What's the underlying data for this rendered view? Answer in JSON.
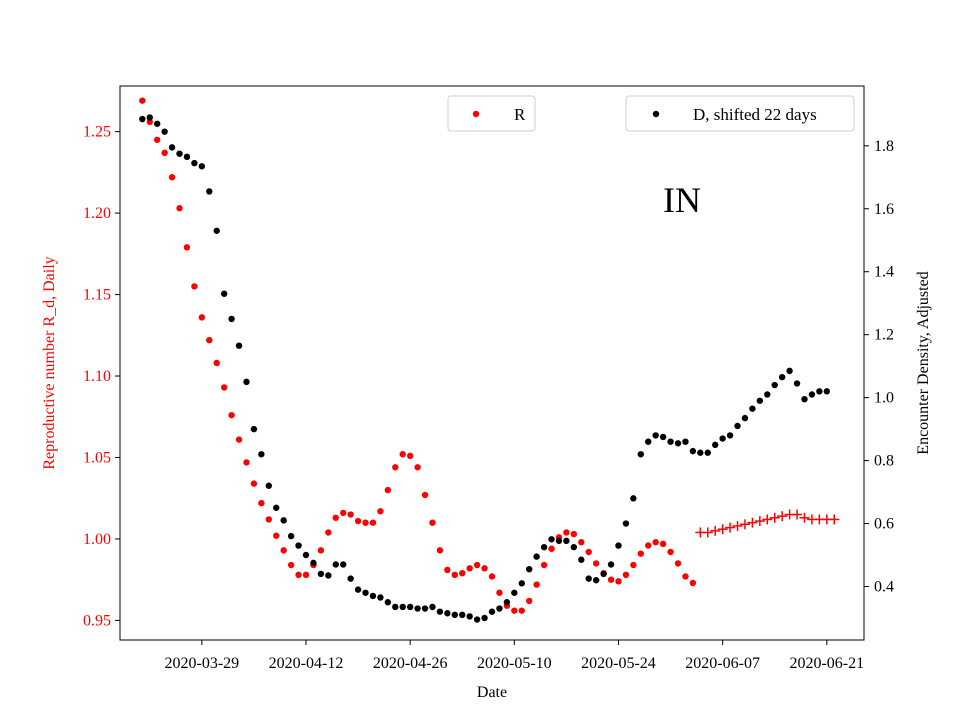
{
  "colors": {
    "r": "#ff0000",
    "d": "#000000",
    "axis": "#000000",
    "legend_border": "#cccccc"
  },
  "chart_data": {
    "type": "scatter",
    "annotation": "IN",
    "xlabel": "Date",
    "ylabel_left": "Reproductive number R_d, Daily",
    "ylabel_right": "Encounter Density, Adjusted",
    "grid": false,
    "x_tick_labels": [
      "2020-03-29",
      "2020-04-12",
      "2020-04-26",
      "2020-05-10",
      "2020-05-24",
      "2020-06-07",
      "2020-06-21"
    ],
    "y_left_tick_labels": [
      "0.95",
      "1.00",
      "1.05",
      "1.10",
      "1.15",
      "1.20",
      "1.25"
    ],
    "y_right_tick_labels": [
      "0.4",
      "0.6",
      "0.8",
      "1.0",
      "1.2",
      "1.4",
      "1.6",
      "1.8"
    ],
    "y_left_ticks": [
      0.95,
      1.0,
      1.05,
      1.1,
      1.15,
      1.2,
      1.25
    ],
    "y_right_ticks": [
      0.4,
      0.6,
      0.8,
      1.0,
      1.2,
      1.4,
      1.6,
      1.8
    ],
    "x_range": [
      "2020-03-18",
      "2020-06-26"
    ],
    "y_left_range": [
      0.938,
      1.278
    ],
    "y_right_range": [
      0.23,
      1.99
    ],
    "legend_r": {
      "label": "R",
      "placement": "top-center"
    },
    "legend_d": {
      "label": "D, shifted 22 days",
      "placement": "top-right"
    },
    "series": [
      {
        "name": "R",
        "axis": "left",
        "marker": "dot",
        "points": [
          [
            "2020-03-21",
            1.269
          ],
          [
            "2020-03-22",
            1.256
          ],
          [
            "2020-03-23",
            1.245
          ],
          [
            "2020-03-24",
            1.237
          ],
          [
            "2020-03-25",
            1.222
          ],
          [
            "2020-03-26",
            1.203
          ],
          [
            "2020-03-27",
            1.179
          ],
          [
            "2020-03-28",
            1.155
          ],
          [
            "2020-03-29",
            1.136
          ],
          [
            "2020-03-30",
            1.122
          ],
          [
            "2020-03-31",
            1.108
          ],
          [
            "2020-04-01",
            1.093
          ],
          [
            "2020-04-02",
            1.076
          ],
          [
            "2020-04-03",
            1.061
          ],
          [
            "2020-04-04",
            1.047
          ],
          [
            "2020-04-05",
            1.034
          ],
          [
            "2020-04-06",
            1.022
          ],
          [
            "2020-04-07",
            1.012
          ],
          [
            "2020-04-08",
            1.002
          ],
          [
            "2020-04-09",
            0.993
          ],
          [
            "2020-04-10",
            0.984
          ],
          [
            "2020-04-11",
            0.978
          ],
          [
            "2020-04-12",
            0.978
          ],
          [
            "2020-04-13",
            0.984
          ],
          [
            "2020-04-14",
            0.993
          ],
          [
            "2020-04-15",
            1.004
          ],
          [
            "2020-04-16",
            1.013
          ],
          [
            "2020-04-17",
            1.016
          ],
          [
            "2020-04-18",
            1.015
          ],
          [
            "2020-04-19",
            1.011
          ],
          [
            "2020-04-20",
            1.01
          ],
          [
            "2020-04-21",
            1.01
          ],
          [
            "2020-04-22",
            1.017
          ],
          [
            "2020-04-23",
            1.03
          ],
          [
            "2020-04-24",
            1.044
          ],
          [
            "2020-04-25",
            1.052
          ],
          [
            "2020-04-26",
            1.051
          ],
          [
            "2020-04-27",
            1.044
          ],
          [
            "2020-04-28",
            1.027
          ],
          [
            "2020-04-29",
            1.01
          ],
          [
            "2020-04-30",
            0.993
          ],
          [
            "2020-05-01",
            0.981
          ],
          [
            "2020-05-02",
            0.978
          ],
          [
            "2020-05-03",
            0.979
          ],
          [
            "2020-05-04",
            0.982
          ],
          [
            "2020-05-05",
            0.984
          ],
          [
            "2020-05-06",
            0.982
          ],
          [
            "2020-05-07",
            0.977
          ],
          [
            "2020-05-08",
            0.967
          ],
          [
            "2020-05-09",
            0.959
          ],
          [
            "2020-05-10",
            0.956
          ],
          [
            "2020-05-11",
            0.956
          ],
          [
            "2020-05-12",
            0.962
          ],
          [
            "2020-05-13",
            0.972
          ],
          [
            "2020-05-14",
            0.984
          ],
          [
            "2020-05-15",
            0.994
          ],
          [
            "2020-05-16",
            1.001
          ],
          [
            "2020-05-17",
            1.004
          ],
          [
            "2020-05-18",
            1.003
          ],
          [
            "2020-05-19",
            0.998
          ],
          [
            "2020-05-20",
            0.992
          ],
          [
            "2020-05-21",
            0.985
          ],
          [
            "2020-05-22",
            0.979
          ],
          [
            "2020-05-23",
            0.975
          ],
          [
            "2020-05-24",
            0.974
          ],
          [
            "2020-05-25",
            0.978
          ],
          [
            "2020-05-26",
            0.984
          ],
          [
            "2020-05-27",
            0.991
          ],
          [
            "2020-05-28",
            0.996
          ],
          [
            "2020-05-29",
            0.998
          ],
          [
            "2020-05-30",
            0.997
          ],
          [
            "2020-05-31",
            0.992
          ],
          [
            "2020-06-01",
            0.985
          ],
          [
            "2020-06-02",
            0.977
          ],
          [
            "2020-06-03",
            0.973
          ]
        ]
      },
      {
        "name": "R",
        "axis": "left",
        "marker": "plus",
        "points": [
          [
            "2020-06-04",
            1.004
          ],
          [
            "2020-06-05",
            1.004
          ],
          [
            "2020-06-06",
            1.005
          ],
          [
            "2020-06-07",
            1.006
          ],
          [
            "2020-06-08",
            1.007
          ],
          [
            "2020-06-09",
            1.008
          ],
          [
            "2020-06-10",
            1.009
          ],
          [
            "2020-06-11",
            1.01
          ],
          [
            "2020-06-12",
            1.011
          ],
          [
            "2020-06-13",
            1.012
          ],
          [
            "2020-06-14",
            1.013
          ],
          [
            "2020-06-15",
            1.014
          ],
          [
            "2020-06-16",
            1.015
          ],
          [
            "2020-06-17",
            1.015
          ],
          [
            "2020-06-18",
            1.013
          ],
          [
            "2020-06-19",
            1.012
          ],
          [
            "2020-06-20",
            1.012
          ],
          [
            "2020-06-21",
            1.012
          ],
          [
            "2020-06-22",
            1.012
          ]
        ]
      },
      {
        "name": "D, shifted 22 days",
        "axis": "right",
        "marker": "dot",
        "points": [
          [
            "2020-03-21",
            1.885
          ],
          [
            "2020-03-22",
            1.89
          ],
          [
            "2020-03-23",
            1.87
          ],
          [
            "2020-03-24",
            1.845
          ],
          [
            "2020-03-25",
            1.795
          ],
          [
            "2020-03-26",
            1.775
          ],
          [
            "2020-03-27",
            1.765
          ],
          [
            "2020-03-28",
            1.745
          ],
          [
            "2020-03-29",
            1.735
          ],
          [
            "2020-03-30",
            1.655
          ],
          [
            "2020-03-31",
            1.53
          ],
          [
            "2020-04-01",
            1.33
          ],
          [
            "2020-04-02",
            1.25
          ],
          [
            "2020-04-03",
            1.165
          ],
          [
            "2020-04-04",
            1.05
          ],
          [
            "2020-04-05",
            0.9
          ],
          [
            "2020-04-06",
            0.82
          ],
          [
            "2020-04-07",
            0.72
          ],
          [
            "2020-04-08",
            0.65
          ],
          [
            "2020-04-09",
            0.61
          ],
          [
            "2020-04-10",
            0.56
          ],
          [
            "2020-04-11",
            0.53
          ],
          [
            "2020-04-12",
            0.5
          ],
          [
            "2020-04-13",
            0.475
          ],
          [
            "2020-04-14",
            0.44
          ],
          [
            "2020-04-15",
            0.435
          ],
          [
            "2020-04-16",
            0.47
          ],
          [
            "2020-04-17",
            0.47
          ],
          [
            "2020-04-18",
            0.425
          ],
          [
            "2020-04-19",
            0.39
          ],
          [
            "2020-04-20",
            0.38
          ],
          [
            "2020-04-21",
            0.37
          ],
          [
            "2020-04-22",
            0.365
          ],
          [
            "2020-04-23",
            0.35
          ],
          [
            "2020-04-24",
            0.335
          ],
          [
            "2020-04-25",
            0.335
          ],
          [
            "2020-04-26",
            0.335
          ],
          [
            "2020-04-27",
            0.33
          ],
          [
            "2020-04-28",
            0.33
          ],
          [
            "2020-04-29",
            0.335
          ],
          [
            "2020-04-30",
            0.32
          ],
          [
            "2020-05-01",
            0.315
          ],
          [
            "2020-05-02",
            0.31
          ],
          [
            "2020-05-03",
            0.31
          ],
          [
            "2020-05-04",
            0.305
          ],
          [
            "2020-05-05",
            0.295
          ],
          [
            "2020-05-06",
            0.3
          ],
          [
            "2020-05-07",
            0.32
          ],
          [
            "2020-05-08",
            0.33
          ],
          [
            "2020-05-09",
            0.35
          ],
          [
            "2020-05-10",
            0.38
          ],
          [
            "2020-05-11",
            0.41
          ],
          [
            "2020-05-12",
            0.455
          ],
          [
            "2020-05-13",
            0.495
          ],
          [
            "2020-05-14",
            0.525
          ],
          [
            "2020-05-15",
            0.55
          ],
          [
            "2020-05-16",
            0.545
          ],
          [
            "2020-05-17",
            0.545
          ],
          [
            "2020-05-18",
            0.525
          ],
          [
            "2020-05-19",
            0.485
          ],
          [
            "2020-05-20",
            0.425
          ],
          [
            "2020-05-21",
            0.42
          ],
          [
            "2020-05-22",
            0.44
          ],
          [
            "2020-05-23",
            0.47
          ],
          [
            "2020-05-24",
            0.53
          ],
          [
            "2020-05-25",
            0.6
          ],
          [
            "2020-05-26",
            0.68
          ],
          [
            "2020-05-27",
            0.82
          ],
          [
            "2020-05-28",
            0.86
          ],
          [
            "2020-05-29",
            0.88
          ],
          [
            "2020-05-30",
            0.875
          ],
          [
            "2020-05-31",
            0.86
          ],
          [
            "2020-06-01",
            0.855
          ],
          [
            "2020-06-02",
            0.86
          ],
          [
            "2020-06-03",
            0.83
          ],
          [
            "2020-06-04",
            0.825
          ],
          [
            "2020-06-05",
            0.825
          ],
          [
            "2020-06-06",
            0.85
          ],
          [
            "2020-06-07",
            0.87
          ],
          [
            "2020-06-08",
            0.88
          ],
          [
            "2020-06-09",
            0.91
          ],
          [
            "2020-06-10",
            0.935
          ],
          [
            "2020-06-11",
            0.965
          ],
          [
            "2020-06-12",
            0.99
          ],
          [
            "2020-06-13",
            1.01
          ],
          [
            "2020-06-14",
            1.04
          ],
          [
            "2020-06-15",
            1.065
          ],
          [
            "2020-06-16",
            1.085
          ],
          [
            "2020-06-17",
            1.045
          ],
          [
            "2020-06-18",
            0.995
          ],
          [
            "2020-06-19",
            1.01
          ],
          [
            "2020-06-20",
            1.02
          ],
          [
            "2020-06-21",
            1.02
          ]
        ]
      }
    ]
  }
}
